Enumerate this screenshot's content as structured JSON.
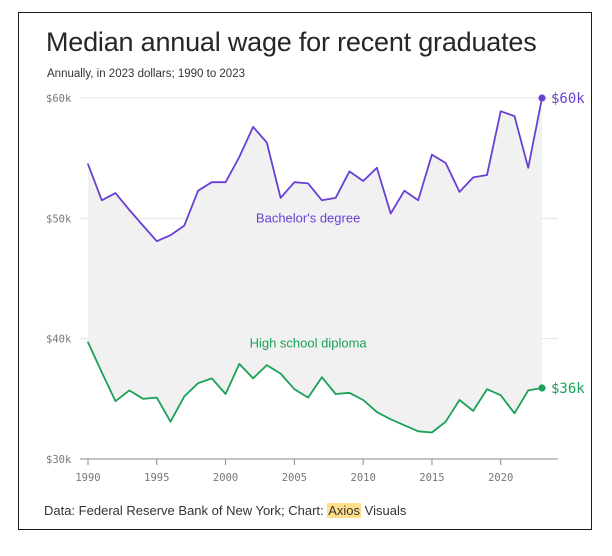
{
  "title": "Median annual wage for recent graduates",
  "subtitle": "Annually, in 2023 dollars; 1990 to 2023",
  "source": {
    "prefix": "Data: Federal Reserve Bank of New York; Chart: ",
    "brand": "Axios",
    "suffix": " Visuals"
  },
  "chart_data": {
    "type": "line",
    "title": "Median annual wage for recent graduates",
    "subtitle": "Annually, in 2023 dollars; 1990 to 2023",
    "xlabel": "",
    "ylabel": "",
    "x": [
      1990,
      1991,
      1992,
      1993,
      1994,
      1995,
      1996,
      1997,
      1998,
      1999,
      2000,
      2001,
      2002,
      2003,
      2004,
      2005,
      2006,
      2007,
      2008,
      2009,
      2010,
      2011,
      2012,
      2013,
      2014,
      2015,
      2016,
      2017,
      2018,
      2019,
      2020,
      2021,
      2022,
      2023
    ],
    "xlim": [
      1990,
      2023
    ],
    "ylim": [
      30000,
      60000
    ],
    "x_ticks": [
      1990,
      1995,
      2000,
      2005,
      2010,
      2015,
      2020
    ],
    "x_tick_labels": [
      "1990",
      "1995",
      "2000",
      "2005",
      "2010",
      "2015",
      "2020"
    ],
    "y_ticks": [
      30000,
      40000,
      50000,
      60000
    ],
    "y_tick_labels": [
      "$30k",
      "$40k",
      "$50k",
      "$60k"
    ],
    "grid": "horizontal",
    "shaded_between_series": true,
    "series": [
      {
        "name": "Bachelor's degree",
        "color": "#6a3fd6",
        "end_label": "$60k",
        "values": [
          54500,
          51500,
          52100,
          50700,
          49400,
          48100,
          48600,
          49400,
          52300,
          53000,
          53000,
          55100,
          57600,
          56300,
          51700,
          53000,
          52900,
          51500,
          51700,
          53900,
          53100,
          54200,
          50400,
          52300,
          51500,
          55300,
          54600,
          52200,
          53400,
          53600,
          58900,
          58500,
          54200,
          60000
        ]
      },
      {
        "name": "High school diploma",
        "color": "#1aa157",
        "end_label": "$36k",
        "values": [
          39700,
          37200,
          34800,
          35700,
          35000,
          35100,
          33100,
          35200,
          36300,
          36700,
          35400,
          37900,
          36700,
          37800,
          37100,
          35800,
          35100,
          36800,
          35400,
          35500,
          34900,
          33900,
          33300,
          32800,
          32300,
          32200,
          33100,
          34900,
          34000,
          35800,
          35300,
          33800,
          35700,
          35900
        ]
      }
    ]
  }
}
